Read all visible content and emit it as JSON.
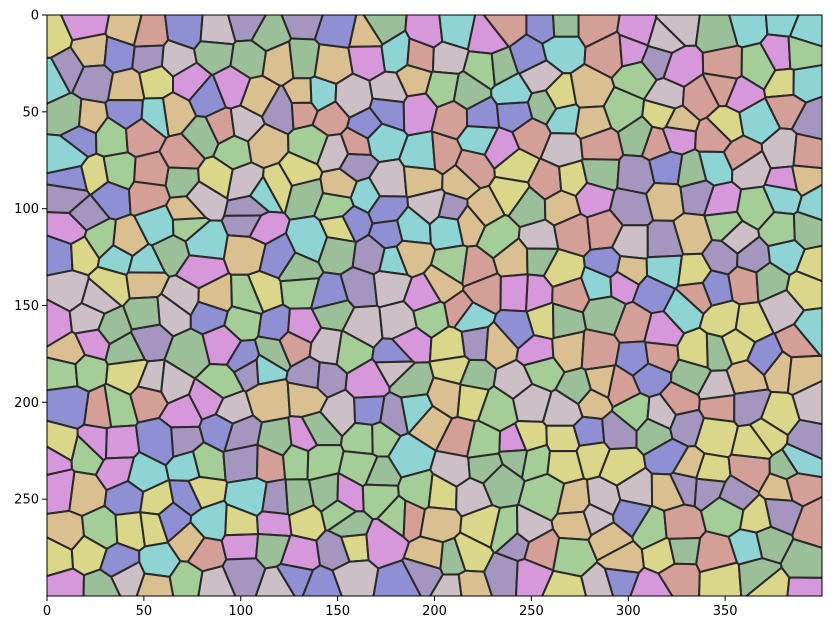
{
  "figure": {
    "image_description_free": true,
    "x_axis": {
      "range": [
        0,
        400
      ],
      "ticks": [
        {
          "value": 0,
          "label": "0"
        },
        {
          "value": 50,
          "label": "50"
        },
        {
          "value": 100,
          "label": "100"
        },
        {
          "value": 150,
          "label": "150"
        },
        {
          "value": 200,
          "label": "200"
        },
        {
          "value": 250,
          "label": "250"
        },
        {
          "value": 300,
          "label": "300"
        },
        {
          "value": 350,
          "label": "350"
        }
      ]
    },
    "y_axis": {
      "range": [
        0,
        300
      ],
      "inverted": true,
      "ticks": [
        {
          "value": 0,
          "label": "0"
        },
        {
          "value": 50,
          "label": "50"
        },
        {
          "value": 100,
          "label": "100"
        },
        {
          "value": 150,
          "label": "150"
        },
        {
          "value": 200,
          "label": "200"
        },
        {
          "value": 250,
          "label": "250"
        }
      ]
    },
    "palette": [
      "#e39ae8",
      "#a8d89a",
      "#e8e38a",
      "#8f8fe0",
      "#e0a298",
      "#8fe0e0",
      "#a898c8",
      "#9ec89a",
      "#e8c890",
      "#d8c8d0"
    ],
    "boundary_color": "#2a2a2a",
    "background_texture_color": "#8c8c8c"
  }
}
